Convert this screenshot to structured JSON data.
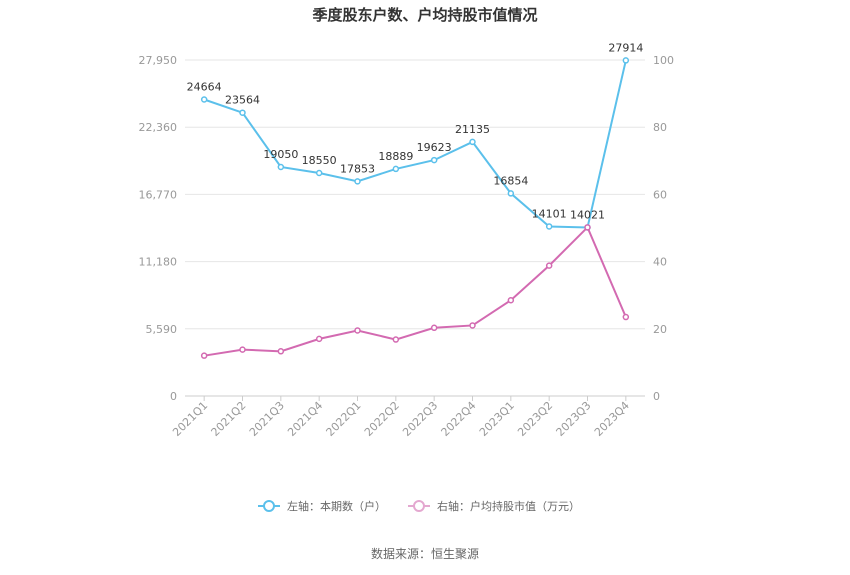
{
  "chart_data": {
    "type": "line",
    "title": "季度股东户数、户均持股市值情况",
    "categories": [
      "2021Q1",
      "2021Q2",
      "2021Q3",
      "2021Q4",
      "2022Q1",
      "2022Q2",
      "2022Q3",
      "2022Q4",
      "2023Q1",
      "2023Q2",
      "2023Q3",
      "2023Q4"
    ],
    "left_axis": {
      "ticks": [
        "0",
        "5,590",
        "11,180",
        "16,770",
        "22,360",
        "27,950"
      ],
      "min": 0,
      "max": 27950
    },
    "right_axis": {
      "ticks": [
        "0",
        "20",
        "40",
        "60",
        "80",
        "100"
      ],
      "min": 0,
      "max": 100
    },
    "grid": true,
    "legend_position": "bottom",
    "series": [
      {
        "name": "左轴：本期数（户）",
        "axis": "left",
        "color": "#5bc0eb",
        "values": [
          24664,
          23564,
          19050,
          18550,
          17853,
          18889,
          19623,
          21135,
          16854,
          14101,
          14021,
          27914
        ],
        "labels": [
          "24664",
          "23564",
          "19050",
          "18550",
          "17853",
          "18889",
          "19623",
          "21135",
          "16854",
          "14101",
          "14021",
          "27914"
        ]
      },
      {
        "name": "右轴：户均持股市值（万元）",
        "axis": "right",
        "color": "#d36ab1",
        "values": [
          12.0,
          13.8,
          13.3,
          17.0,
          19.5,
          16.8,
          20.3,
          21.0,
          28.5,
          38.8,
          50.2,
          23.5
        ]
      }
    ]
  },
  "source": "数据来源：恒生聚源"
}
